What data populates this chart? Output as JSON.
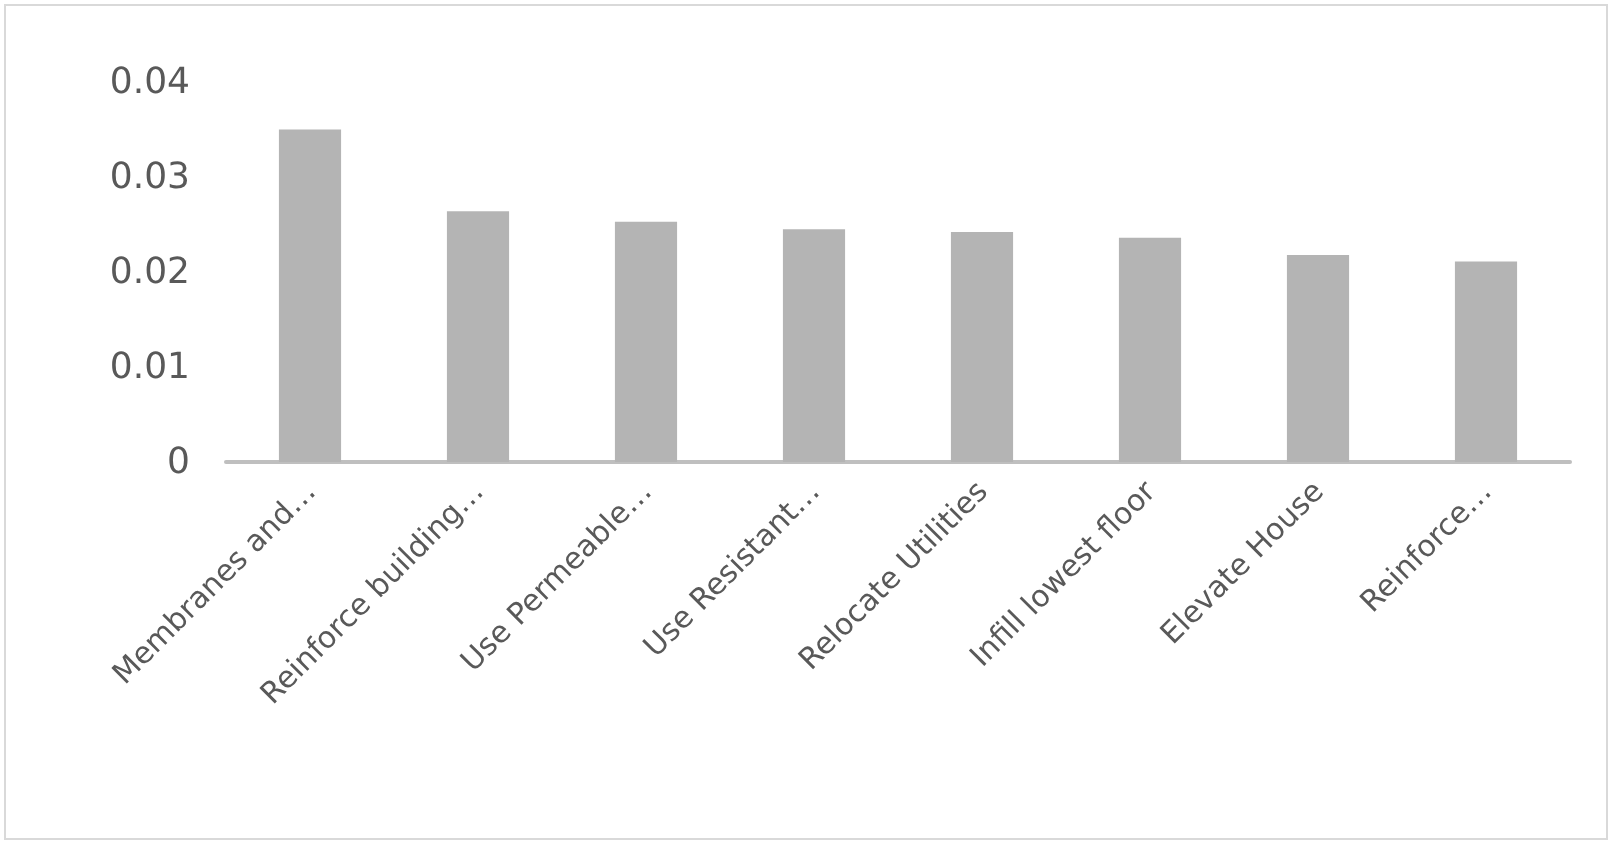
{
  "chart_data": {
    "type": "bar",
    "categories": [
      "Membranes and…",
      "Reinforce building…",
      "Use Permeable…",
      "Use Resistant…",
      "Relocate Utilities",
      "Infill lowest floor",
      "Elevate House",
      "Reinforce…"
    ],
    "values": [
      0.035,
      0.0264,
      0.0253,
      0.0245,
      0.0242,
      0.0236,
      0.0218,
      0.0211
    ],
    "color": "#b4b4b4",
    "ylim": [
      0,
      0.04
    ],
    "yticks": [
      0,
      0.01,
      0.02,
      0.03,
      0.04
    ],
    "grid": false
  }
}
